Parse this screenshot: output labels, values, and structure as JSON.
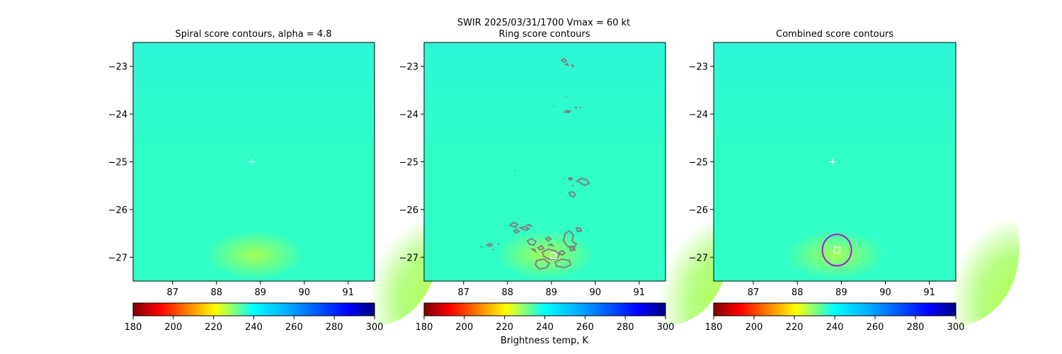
{
  "figure": {
    "suptitle": "SWIR  2025/03/31/1700    Vmax = 60 kt",
    "colorbar_label": "Brightness temp, K"
  },
  "colors": {
    "field_base": "#30ffc8",
    "field_warm": "#a8ff48",
    "ring_contour": "#808080",
    "combined_contour": "#9a1fcf",
    "marker": "#ffffff"
  },
  "chart_data": [
    {
      "type": "heatmap",
      "title": "Spiral score contours, alpha =  4.8",
      "xlim": [
        86.1,
        91.6
      ],
      "ylim": [
        -27.5,
        -22.5
      ],
      "xticks": [
        87,
        88,
        89,
        90,
        91
      ],
      "yticks": [
        -23,
        -24,
        -25,
        -26,
        -27
      ],
      "xtick_labels": [
        "87",
        "88",
        "89",
        "90",
        "91"
      ],
      "ytick_labels": [
        "−23",
        "−24",
        "−25",
        "−26",
        "−27"
      ],
      "colormap": "jet",
      "clim": [
        180,
        300
      ],
      "colorbar_ticks": [
        180,
        200,
        220,
        240,
        260,
        280,
        300
      ],
      "colorbar_tick_labels": [
        "180",
        "200",
        "220",
        "240",
        "260",
        "280",
        "300"
      ],
      "markers": [
        {
          "symbol": "plus",
          "lon": 88.8,
          "lat": -25.0
        }
      ]
    },
    {
      "type": "heatmap",
      "title": "Ring score contours",
      "xlim": [
        86.1,
        91.6
      ],
      "ylim": [
        -27.5,
        -22.5
      ],
      "xticks": [
        87,
        88,
        89,
        90,
        91
      ],
      "yticks": [
        -23,
        -24,
        -25,
        -26,
        -27
      ],
      "xtick_labels": [
        "87",
        "88",
        "89",
        "90",
        "91"
      ],
      "ytick_labels": [
        "−23",
        "−24",
        "−25",
        "−26",
        "−27"
      ],
      "colormap": "jet",
      "clim": [
        180,
        300
      ],
      "colorbar_ticks": [
        180,
        200,
        220,
        240,
        260,
        280,
        300
      ],
      "colorbar_tick_labels": [
        "180",
        "200",
        "220",
        "240",
        "260",
        "280",
        "300"
      ],
      "markers": [
        {
          "symbol": "square",
          "lon": 89.05,
          "lat": -26.97
        }
      ]
    },
    {
      "type": "heatmap",
      "title": "Combined score contours",
      "xlim": [
        86.1,
        91.6
      ],
      "ylim": [
        -27.5,
        -22.5
      ],
      "xticks": [
        87,
        88,
        89,
        90,
        91
      ],
      "yticks": [
        -23,
        -24,
        -25,
        -26,
        -27
      ],
      "xtick_labels": [
        "87",
        "88",
        "89",
        "90",
        "91"
      ],
      "ytick_labels": [
        "−23",
        "−24",
        "−25",
        "−26",
        "−27"
      ],
      "colormap": "jet",
      "clim": [
        180,
        300
      ],
      "colorbar_ticks": [
        180,
        200,
        220,
        240,
        260,
        280,
        300
      ],
      "colorbar_tick_labels": [
        "180",
        "200",
        "220",
        "240",
        "260",
        "280",
        "300"
      ],
      "markers": [
        {
          "symbol": "plus",
          "lon": 88.8,
          "lat": -25.0
        },
        {
          "symbol": "square",
          "lon": 88.9,
          "lat": -26.85
        }
      ],
      "circle": {
        "lon": 88.9,
        "lat": -26.85,
        "radius_deg": 0.33
      }
    }
  ]
}
